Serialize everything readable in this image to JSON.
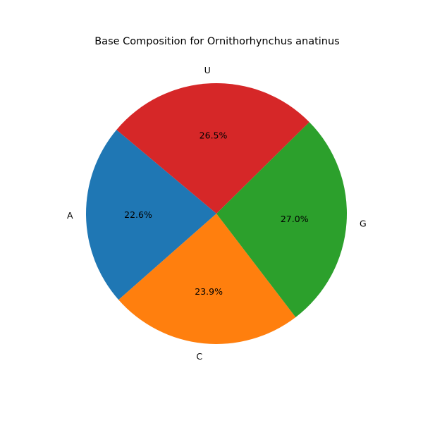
{
  "chart_data": {
    "type": "pie",
    "title": "Base Composition for Ornithorhynchus anatinus",
    "labels": [
      "A",
      "C",
      "G",
      "U"
    ],
    "values": [
      22.6,
      23.9,
      27.0,
      26.5
    ],
    "percent_labels": [
      "22.6%",
      "23.9%",
      "27.0%",
      "26.5%"
    ],
    "colors": [
      "#1f77b4",
      "#ff7f0e",
      "#2ca02c",
      "#d62728"
    ],
    "start_angle_deg": 140,
    "direction": "counterclockwise",
    "legend": "none"
  }
}
